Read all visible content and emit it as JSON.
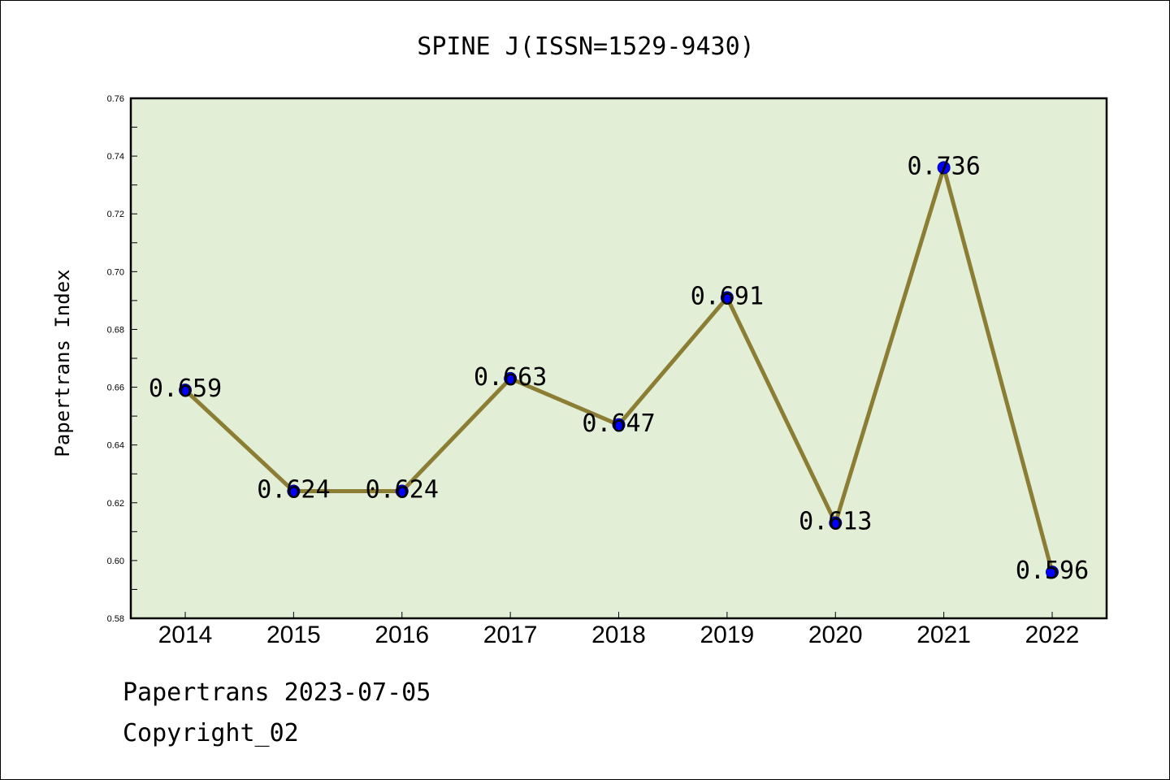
{
  "chart_data": {
    "type": "line",
    "title": "SPINE J(ISSN=1529-9430)",
    "xlabel": "",
    "ylabel": "Papertrans Index",
    "categories": [
      "2014",
      "2015",
      "2016",
      "2017",
      "2018",
      "2019",
      "2020",
      "2021",
      "2022"
    ],
    "values": [
      0.659,
      0.624,
      0.624,
      0.663,
      0.647,
      0.691,
      0.613,
      0.736,
      0.596
    ],
    "data_labels": [
      "0.659",
      "0.624",
      "0.624",
      "0.663",
      "0.647",
      "0.691",
      "0.613",
      "0.736",
      "0.596"
    ],
    "ylim": [
      0.58,
      0.76
    ],
    "yticks": [
      "0.58",
      "0.60",
      "0.62",
      "0.64",
      "0.66",
      "0.68",
      "0.70",
      "0.72",
      "0.74",
      "0.76"
    ],
    "grid": false,
    "legend": "none",
    "colors": {
      "plot_background": "#e2efd6",
      "line": "#8c7d35",
      "marker": "#0000ff"
    }
  },
  "footer": {
    "line1": "Papertrans 2023-07-05",
    "line2": "Copyright_02"
  }
}
